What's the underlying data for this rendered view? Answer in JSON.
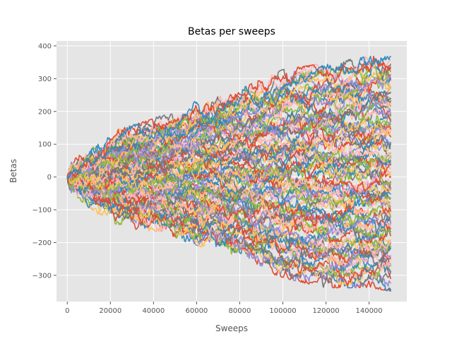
{
  "chart_data": {
    "type": "line",
    "title": "Betas per sweeps",
    "xlabel": "Sweeps",
    "ylabel": "Betas",
    "xlim": [
      -5000,
      157500
    ],
    "ylim": [
      -380,
      415
    ],
    "xticks": [
      0,
      20000,
      40000,
      60000,
      80000,
      100000,
      120000,
      140000
    ],
    "xtick_labels": [
      "0",
      "20000",
      "40000",
      "60000",
      "80000",
      "100000",
      "120000",
      "140000"
    ],
    "yticks": [
      -300,
      -200,
      -100,
      0,
      100,
      200,
      300,
      400
    ],
    "ytick_labels": [
      "−300",
      "−200",
      "−100",
      "0",
      "100",
      "200",
      "300",
      "400"
    ],
    "grid": true,
    "background": "#e5e5e5",
    "series_count": 100,
    "x_range": [
      0,
      150000
    ],
    "palette": [
      "#e24a33",
      "#348abd",
      "#988ed5",
      "#777777",
      "#fbc15e",
      "#8eba42",
      "#ffb5b8"
    ],
    "envelope": {
      "x": [
        0,
        20000,
        40000,
        60000,
        80000,
        100000,
        120000,
        140000,
        150000
      ],
      "upper": [
        30,
        130,
        170,
        230,
        260,
        320,
        340,
        360,
        360
      ],
      "lower": [
        -30,
        -140,
        -160,
        -200,
        -250,
        -300,
        -330,
        -330,
        -340
      ]
    },
    "start_value": 0
  }
}
